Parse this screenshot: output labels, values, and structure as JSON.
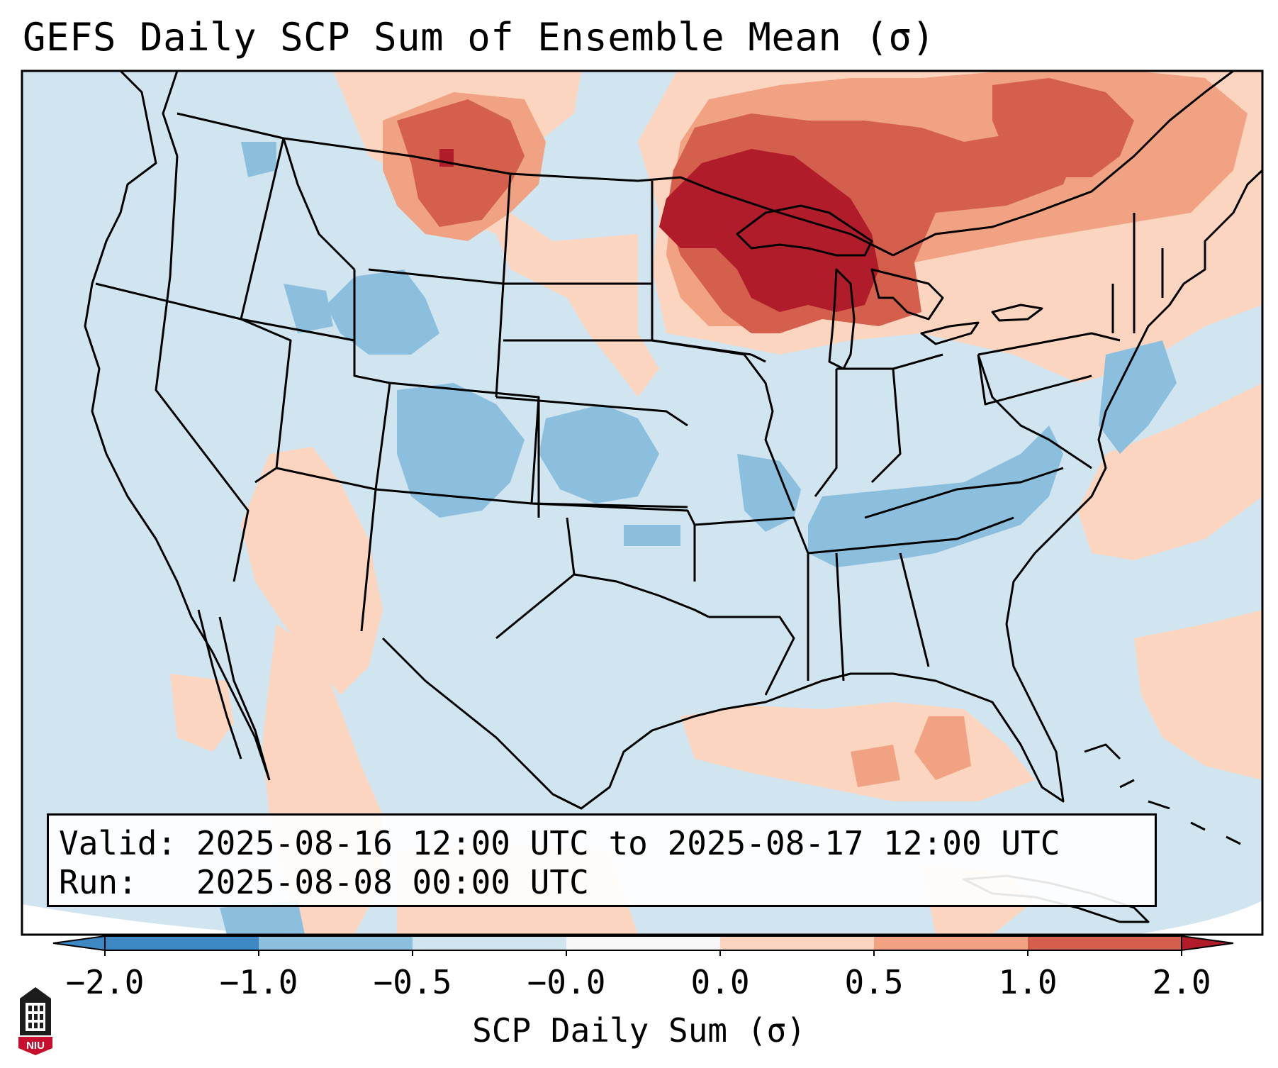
{
  "title": "GEFS Daily SCP Sum of Ensemble Mean (σ)",
  "info": {
    "valid_label": "Valid:",
    "valid_value": "2025-08-16 12:00 UTC to 2025-08-17 12:00 UTC",
    "run_label": "Run:",
    "run_value": "2025-08-08 00:00 UTC"
  },
  "colorbar": {
    "label": "SCP Daily Sum (σ)",
    "ticks": [
      "−2.0",
      "−1.0",
      "−0.5",
      "−0.0",
      "0.0",
      "0.5",
      "1.0",
      "2.0"
    ],
    "colors": [
      "#3d87c2",
      "#8cbfdd",
      "#d1e5f0",
      "#f7f7f7",
      "#fcd5c0",
      "#f0a283",
      "#d45f4d",
      "#b11c2b"
    ]
  },
  "map": {
    "background_color": "#d1e5f0",
    "outside_color": "#ffffff",
    "anomaly_field": "GEFS ensemble mean SCP daily sum anomaly",
    "max_region": "Upper Midwest / Great Lakes",
    "max_value_category": ">2.0",
    "negative_regions": [
      "Central Plains",
      "Tennessee Valley",
      "Mid-Atlantic",
      "Intermountain West"
    ]
  },
  "logo": {
    "text": "NIU",
    "icon": "niu-tower-logo-icon"
  }
}
